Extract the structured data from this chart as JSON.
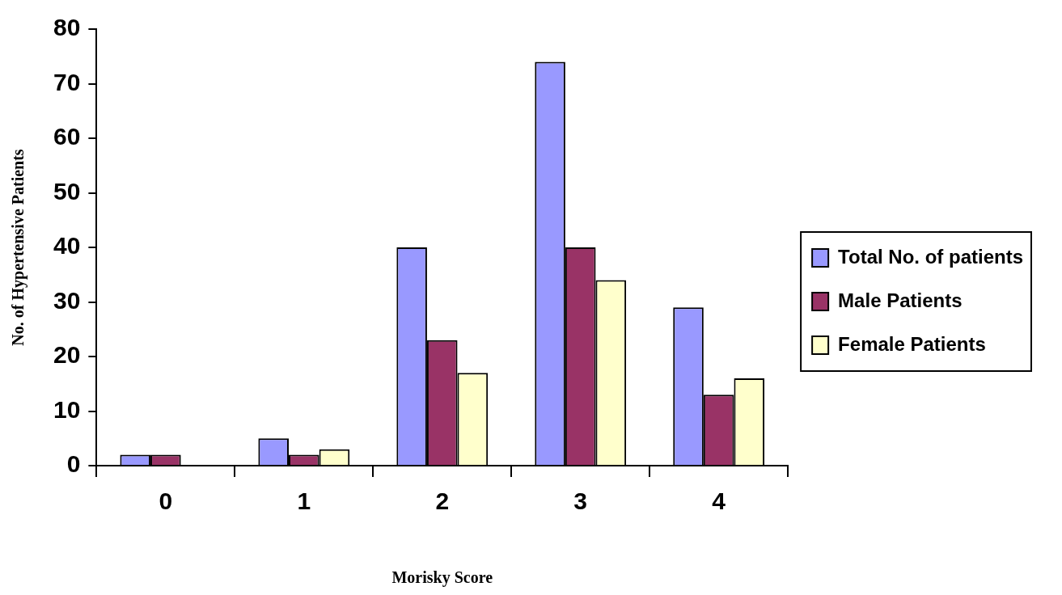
{
  "chart_data": {
    "type": "bar",
    "xlabel": "Morisky Score",
    "ylabel": "No. of Hypertensive Patients",
    "categories": [
      "0",
      "1",
      "2",
      "3",
      "4"
    ],
    "series": [
      {
        "name": "Total No. of patients",
        "color": "#9999ff",
        "values": [
          2,
          5,
          40,
          74,
          29
        ]
      },
      {
        "name": "Male Patients",
        "color": "#993366",
        "values": [
          2,
          2,
          23,
          40,
          13
        ]
      },
      {
        "name": "Female Patients",
        "color": "#ffffcc",
        "values": [
          0,
          3,
          17,
          34,
          16
        ]
      }
    ],
    "ylim": [
      0,
      80
    ],
    "yticks": [
      0,
      10,
      20,
      30,
      40,
      50,
      60,
      70,
      80
    ],
    "grid": false,
    "legend": "right"
  }
}
